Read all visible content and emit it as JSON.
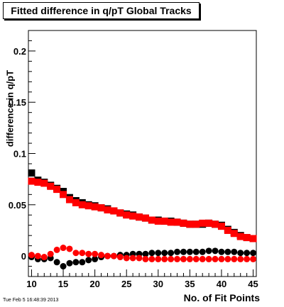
{
  "chart_data": {
    "type": "scatter",
    "title": "Fitted difference in q/pT  Global Tracks",
    "xlabel": "No. of Fit Points",
    "ylabel": "difference in q/pT",
    "xlim": [
      9.5,
      45.5
    ],
    "ylim": [
      -0.02,
      0.22
    ],
    "x_ticks": [
      10,
      15,
      20,
      25,
      30,
      35,
      40,
      45
    ],
    "x_tick_labels": [
      "10",
      "15",
      "20",
      "25",
      "30",
      "35",
      "40",
      "45"
    ],
    "y_ticks": [
      0,
      0.05,
      0.1,
      0.15,
      0.2
    ],
    "y_tick_labels": [
      "0",
      "0.05",
      "0.1",
      "0.15",
      "0.2"
    ],
    "x": [
      10,
      11,
      12,
      13,
      14,
      15,
      16,
      17,
      18,
      19,
      20,
      21,
      22,
      23,
      24,
      25,
      26,
      27,
      28,
      29,
      30,
      31,
      32,
      33,
      34,
      35,
      36,
      37,
      38,
      39,
      40,
      41,
      42,
      43,
      44,
      45
    ],
    "series": [
      {
        "color": "#000000",
        "marker": "square",
        "values": [
          0.081,
          0.074,
          0.072,
          0.069,
          0.066,
          0.063,
          0.057,
          0.054,
          0.052,
          0.05,
          0.049,
          0.047,
          0.046,
          0.044,
          0.042,
          0.041,
          0.04,
          0.038,
          0.037,
          0.035,
          0.035,
          0.034,
          0.034,
          0.033,
          0.032,
          0.031,
          0.031,
          0.031,
          0.032,
          0.031,
          0.03,
          0.026,
          0.023,
          0.02,
          0.018,
          0.017
        ]
      },
      {
        "color": "#ff0000",
        "marker": "square",
        "values": [
          0.073,
          0.072,
          0.071,
          0.068,
          0.065,
          0.06,
          0.055,
          0.052,
          0.05,
          0.049,
          0.048,
          0.047,
          0.045,
          0.044,
          0.042,
          0.04,
          0.039,
          0.038,
          0.037,
          0.035,
          0.034,
          0.034,
          0.033,
          0.033,
          0.032,
          0.031,
          0.031,
          0.032,
          0.032,
          0.031,
          0.029,
          0.025,
          0.022,
          0.019,
          0.018,
          0.017
        ]
      },
      {
        "color": "#000000",
        "marker": "circle",
        "values": [
          -0.001,
          -0.003,
          -0.003,
          -0.002,
          -0.006,
          -0.01,
          -0.007,
          -0.006,
          -0.006,
          -0.004,
          -0.003,
          -0.001,
          0.0,
          0.0,
          0.001,
          0.001,
          0.002,
          0.002,
          0.002,
          0.003,
          0.003,
          0.003,
          0.003,
          0.004,
          0.004,
          0.004,
          0.004,
          0.004,
          0.005,
          0.005,
          0.004,
          0.004,
          0.004,
          0.003,
          0.003,
          0.003
        ]
      },
      {
        "color": "#ff0000",
        "marker": "circle",
        "values": [
          0.001,
          0.0,
          -0.001,
          0.002,
          0.006,
          0.008,
          0.007,
          0.003,
          0.003,
          0.002,
          0.002,
          0.001,
          0.0,
          0.0,
          -0.001,
          -0.002,
          -0.002,
          -0.002,
          -0.003,
          -0.003,
          -0.003,
          -0.003,
          -0.003,
          -0.003,
          -0.003,
          -0.003,
          -0.003,
          -0.003,
          -0.003,
          -0.003,
          -0.003,
          -0.003,
          -0.003,
          -0.003,
          -0.003,
          -0.003
        ]
      }
    ],
    "grid": false,
    "legend": "none"
  },
  "footer_timestamp": "Tue Feb  5 16:48:39 2013"
}
